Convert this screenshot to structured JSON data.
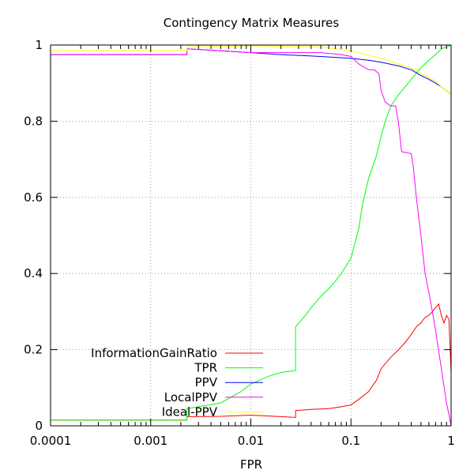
{
  "chart_data": {
    "type": "line",
    "title": "Contingency Matrix Measures",
    "xlabel": "FPR",
    "ylabel": "",
    "x_scale": "log",
    "xlim": [
      0.0001,
      1
    ],
    "ylim": [
      0,
      1
    ],
    "x_ticks": [
      "0.0001",
      "0.001",
      "0.01",
      "0.1",
      "1"
    ],
    "y_ticks": [
      "0",
      "0.2",
      "0.4",
      "0.6",
      "0.8",
      "1"
    ],
    "grid": true,
    "legend_position": "bottom-left",
    "series": [
      {
        "name": "InformationGainRatio",
        "color": "#ff0000",
        "points": [
          [
            0.0001,
            0.015
          ],
          [
            0.0023,
            0.015
          ],
          [
            0.0023,
            0.024
          ],
          [
            0.005,
            0.025
          ],
          [
            0.01,
            0.028
          ],
          [
            0.02,
            0.024
          ],
          [
            0.028,
            0.022
          ],
          [
            0.028,
            0.04
          ],
          [
            0.04,
            0.043
          ],
          [
            0.06,
            0.045
          ],
          [
            0.08,
            0.05
          ],
          [
            0.1,
            0.055
          ],
          [
            0.12,
            0.07
          ],
          [
            0.15,
            0.09
          ],
          [
            0.18,
            0.12
          ],
          [
            0.2,
            0.15
          ],
          [
            0.25,
            0.18
          ],
          [
            0.3,
            0.2
          ],
          [
            0.35,
            0.22
          ],
          [
            0.4,
            0.24
          ],
          [
            0.45,
            0.26
          ],
          [
            0.5,
            0.27
          ],
          [
            0.55,
            0.285
          ],
          [
            0.6,
            0.29
          ],
          [
            0.65,
            0.3
          ],
          [
            0.7,
            0.31
          ],
          [
            0.75,
            0.32
          ],
          [
            0.8,
            0.29
          ],
          [
            0.85,
            0.27
          ],
          [
            0.9,
            0.29
          ],
          [
            0.95,
            0.28
          ],
          [
            1,
            0.14
          ]
        ]
      },
      {
        "name": "TPR",
        "color": "#00ff00",
        "points": [
          [
            0.0001,
            0.015
          ],
          [
            0.0023,
            0.015
          ],
          [
            0.0023,
            0.045
          ],
          [
            0.005,
            0.06
          ],
          [
            0.008,
            0.09
          ],
          [
            0.01,
            0.11
          ],
          [
            0.015,
            0.13
          ],
          [
            0.02,
            0.14
          ],
          [
            0.028,
            0.145
          ],
          [
            0.028,
            0.26
          ],
          [
            0.035,
            0.29
          ],
          [
            0.04,
            0.31
          ],
          [
            0.05,
            0.34
          ],
          [
            0.06,
            0.36
          ],
          [
            0.07,
            0.38
          ],
          [
            0.08,
            0.4
          ],
          [
            0.1,
            0.44
          ],
          [
            0.12,
            0.52
          ],
          [
            0.13,
            0.58
          ],
          [
            0.15,
            0.65
          ],
          [
            0.18,
            0.71
          ],
          [
            0.2,
            0.76
          ],
          [
            0.22,
            0.8
          ],
          [
            0.25,
            0.84
          ],
          [
            0.3,
            0.87
          ],
          [
            0.4,
            0.91
          ],
          [
            0.5,
            0.94
          ],
          [
            0.6,
            0.96
          ],
          [
            0.7,
            0.975
          ],
          [
            0.8,
            0.99
          ],
          [
            0.9,
            0.995
          ],
          [
            1,
            1
          ]
        ]
      },
      {
        "name": "PPV",
        "color": "#0000ff",
        "points": [
          [
            0.0001,
            0.975
          ],
          [
            0.0023,
            0.975
          ],
          [
            0.0023,
            0.99
          ],
          [
            0.005,
            0.985
          ],
          [
            0.01,
            0.98
          ],
          [
            0.02,
            0.975
          ],
          [
            0.05,
            0.97
          ],
          [
            0.1,
            0.965
          ],
          [
            0.15,
            0.96
          ],
          [
            0.2,
            0.955
          ],
          [
            0.3,
            0.945
          ],
          [
            0.4,
            0.935
          ],
          [
            0.5,
            0.92
          ],
          [
            0.6,
            0.91
          ],
          [
            0.7,
            0.9
          ],
          [
            0.8,
            0.89
          ],
          [
            0.9,
            0.88
          ],
          [
            1,
            0.87
          ]
        ]
      },
      {
        "name": "LocalPPV",
        "color": "#ff00ff",
        "points": [
          [
            0.0001,
            0.975
          ],
          [
            0.0023,
            0.975
          ],
          [
            0.0023,
            0.99
          ],
          [
            0.005,
            0.985
          ],
          [
            0.01,
            0.98
          ],
          [
            0.02,
            0.98
          ],
          [
            0.05,
            0.98
          ],
          [
            0.08,
            0.975
          ],
          [
            0.1,
            0.97
          ],
          [
            0.12,
            0.95
          ],
          [
            0.15,
            0.935
          ],
          [
            0.17,
            0.935
          ],
          [
            0.19,
            0.925
          ],
          [
            0.2,
            0.88
          ],
          [
            0.22,
            0.85
          ],
          [
            0.25,
            0.84
          ],
          [
            0.28,
            0.84
          ],
          [
            0.3,
            0.79
          ],
          [
            0.32,
            0.72
          ],
          [
            0.4,
            0.715
          ],
          [
            0.42,
            0.68
          ],
          [
            0.45,
            0.6
          ],
          [
            0.5,
            0.5
          ],
          [
            0.55,
            0.4
          ],
          [
            0.6,
            0.35
          ],
          [
            0.65,
            0.3
          ],
          [
            0.7,
            0.25
          ],
          [
            0.8,
            0.15
          ],
          [
            0.9,
            0.06
          ],
          [
            0.95,
            0.03
          ],
          [
            1,
            0
          ]
        ]
      },
      {
        "name": "Ideal-PPV",
        "color": "#ffff00",
        "points": [
          [
            0.0001,
            0.985
          ],
          [
            0.0023,
            0.985
          ],
          [
            0.0023,
            0.995
          ],
          [
            0.01,
            0.998
          ],
          [
            0.05,
            0.995
          ],
          [
            0.1,
            0.985
          ],
          [
            0.2,
            0.965
          ],
          [
            0.3,
            0.95
          ],
          [
            0.4,
            0.94
          ],
          [
            0.5,
            0.925
          ],
          [
            0.6,
            0.915
          ],
          [
            0.7,
            0.905
          ],
          [
            0.8,
            0.89
          ],
          [
            0.9,
            0.88
          ],
          [
            1,
            0.87
          ]
        ]
      }
    ]
  }
}
